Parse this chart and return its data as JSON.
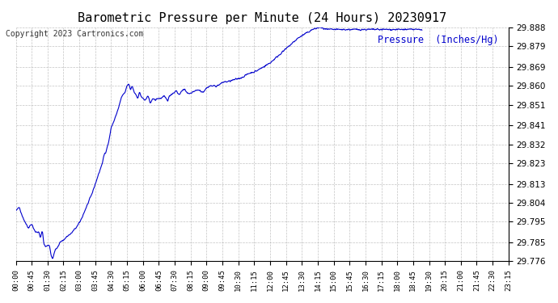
{
  "title": "Barometric Pressure per Minute (24 Hours) 20230917",
  "copyright": "Copyright 2023 Cartronics.com",
  "legend_label": "Pressure  (Inches/Hg)",
  "line_color": "#0000CC",
  "background_color": "#ffffff",
  "grid_color": "#aaaaaa",
  "ylim": [
    29.776,
    29.888
  ],
  "yticks": [
    29.776,
    29.785,
    29.795,
    29.804,
    29.813,
    29.823,
    29.832,
    29.841,
    29.851,
    29.86,
    29.869,
    29.879,
    29.888
  ],
  "xtick_labels": [
    "00:00",
    "00:45",
    "01:30",
    "02:15",
    "03:00",
    "03:45",
    "04:30",
    "05:15",
    "06:00",
    "06:45",
    "07:30",
    "08:15",
    "09:00",
    "09:45",
    "10:30",
    "11:15",
    "12:00",
    "12:45",
    "13:30",
    "14:15",
    "15:00",
    "15:45",
    "16:30",
    "17:15",
    "18:00",
    "18:45",
    "19:30",
    "20:15",
    "21:00",
    "21:45",
    "22:30",
    "23:15"
  ],
  "keypoints": [
    [
      0,
      29.8
    ],
    [
      10,
      29.802
    ],
    [
      20,
      29.797
    ],
    [
      35,
      29.792
    ],
    [
      45,
      29.794
    ],
    [
      55,
      29.79
    ],
    [
      65,
      29.79
    ],
    [
      70,
      29.787
    ],
    [
      75,
      29.791
    ],
    [
      80,
      29.784
    ],
    [
      85,
      29.783
    ],
    [
      95,
      29.784
    ],
    [
      100,
      29.779
    ],
    [
      105,
      29.777
    ],
    [
      110,
      29.781
    ],
    [
      115,
      29.782
    ],
    [
      120,
      29.783
    ],
    [
      125,
      29.785
    ],
    [
      130,
      29.786
    ],
    [
      135,
      29.786
    ],
    [
      145,
      29.788
    ],
    [
      155,
      29.789
    ],
    [
      165,
      29.791
    ],
    [
      175,
      29.793
    ],
    [
      185,
      29.796
    ],
    [
      195,
      29.8
    ],
    [
      205,
      29.804
    ],
    [
      215,
      29.808
    ],
    [
      225,
      29.813
    ],
    [
      235,
      29.818
    ],
    [
      245,
      29.823
    ],
    [
      250,
      29.827
    ],
    [
      255,
      29.828
    ],
    [
      265,
      29.835
    ],
    [
      270,
      29.84
    ],
    [
      275,
      29.842
    ],
    [
      280,
      29.844
    ],
    [
      290,
      29.849
    ],
    [
      295,
      29.852
    ],
    [
      300,
      29.855
    ],
    [
      310,
      29.857
    ],
    [
      315,
      29.86
    ],
    [
      320,
      29.861
    ],
    [
      325,
      29.858
    ],
    [
      330,
      29.86
    ],
    [
      335,
      29.857
    ],
    [
      340,
      29.856
    ],
    [
      345,
      29.854
    ],
    [
      350,
      29.857
    ],
    [
      355,
      29.855
    ],
    [
      360,
      29.854
    ],
    [
      365,
      29.853
    ],
    [
      370,
      29.854
    ],
    [
      375,
      29.855
    ],
    [
      380,
      29.852
    ],
    [
      385,
      29.853
    ],
    [
      390,
      29.854
    ],
    [
      395,
      29.853
    ],
    [
      400,
      29.854
    ],
    [
      410,
      29.854
    ],
    [
      420,
      29.855
    ],
    [
      430,
      29.853
    ],
    [
      435,
      29.855
    ],
    [
      440,
      29.856
    ],
    [
      450,
      29.857
    ],
    [
      455,
      29.858
    ],
    [
      460,
      29.856
    ],
    [
      465,
      29.856
    ],
    [
      470,
      29.858
    ],
    [
      480,
      29.858
    ],
    [
      490,
      29.856
    ],
    [
      500,
      29.857
    ],
    [
      510,
      29.858
    ],
    [
      520,
      29.858
    ],
    [
      530,
      29.857
    ],
    [
      540,
      29.859
    ],
    [
      550,
      29.86
    ],
    [
      560,
      29.86
    ],
    [
      570,
      29.86
    ],
    [
      580,
      29.861
    ],
    [
      590,
      29.862
    ],
    [
      600,
      29.862
    ],
    [
      620,
      29.863
    ],
    [
      640,
      29.864
    ],
    [
      660,
      29.866
    ],
    [
      680,
      29.867
    ],
    [
      700,
      29.869
    ],
    [
      720,
      29.871
    ],
    [
      740,
      29.874
    ],
    [
      760,
      29.877
    ],
    [
      780,
      29.88
    ],
    [
      800,
      29.883
    ],
    [
      820,
      29.885
    ],
    [
      840,
      29.887
    ],
    [
      860,
      29.888
    ],
    [
      880,
      29.887
    ],
    [
      900,
      29.887
    ],
    [
      920,
      29.887
    ],
    [
      940,
      29.887
    ],
    [
      960,
      29.887
    ],
    [
      980,
      29.887
    ],
    [
      1000,
      29.887
    ],
    [
      1020,
      29.887
    ],
    [
      1040,
      29.887
    ],
    [
      1060,
      29.887
    ],
    [
      1080,
      29.887
    ],
    [
      1100,
      29.887
    ],
    [
      1120,
      29.887
    ],
    [
      1140,
      29.887
    ],
    [
      1150,
      29.887
    ]
  ]
}
